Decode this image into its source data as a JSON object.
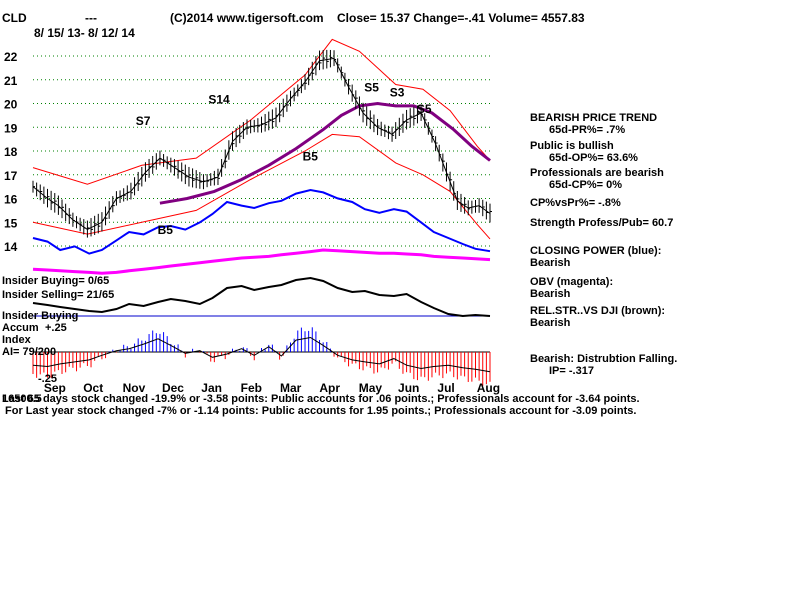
{
  "header": {
    "symbol": "CLD",
    "dashes": "---",
    "date_range": "8/ 15/ 13- 8/ 12/ 14",
    "source": "(C)2014 www.tigersoft.com",
    "quote": "Close=  15.37  Change=-.41 Volume= 4557.83"
  },
  "right_panel": [
    "BEARISH PRICE TREND",
    "65d-PR%= .7%",
    "Public is bullish",
    "65d-OP%= 63.6%",
    "Professionals are bearish",
    "65d-CP%= 0%",
    "CP%vsPr%= -.8%",
    "Strength Profess/Pub= 60.7",
    "CLOSING POWER (blue):",
    "Bearish",
    "OBV (magenta):",
    "Bearish",
    "REL.STR..VS DJI (brown):",
    "Bearish",
    "Bearish: Distrubtion Falling.",
    "IP= -.317"
  ],
  "left_labels": {
    "insider_buying": "Insider Buying= 0/65",
    "insider_selling": "Insider Selling= 21/65",
    "insider_buying_2": "Insider Buying",
    "accum": "Accum",
    "accum_top": "+.25",
    "index": "Index",
    "ai": "AI= 79/200",
    "accum_bottom": "-.25"
  },
  "footer": {
    "line1_overlap": "16500.5",
    "line1": "Last 65 days stock changed -19.9% or -3.58 points:  Public accounts for  .06 points.;  Professionals account for -3.64 points.",
    "line2": "For Last year stock changed -7% or -1.14 points:  Public accounts for  1.95 points.;  Professionals account for -3.09 points."
  },
  "colors": {
    "price_bars": "#000000",
    "bands": "#ff0000",
    "ma": "#800080",
    "closing_power": "#0000ff",
    "obv": "#ff00ff",
    "rel_strength": "#000000",
    "accum_positive": "#0000ff",
    "accum_negative": "#ff0000",
    "grid": "#008000"
  },
  "chart_data": {
    "type": "line",
    "title": "CLD  8/ 15/ 13- 8/ 12/ 14",
    "x_labels": [
      "Sep",
      "Oct",
      "Nov",
      "Dec",
      "Jan",
      "Feb",
      "Mar",
      "Apr",
      "May",
      "Jun",
      "Jul",
      "Aug"
    ],
    "y_ticks": [
      14,
      15,
      16,
      17,
      18,
      19,
      20,
      21,
      22
    ],
    "ylim": [
      13.5,
      22.8
    ],
    "grid": true,
    "series": [
      {
        "name": "CLD",
        "x": [
          0,
          8,
          14,
          22,
          30,
          38,
          46,
          54,
          62,
          70,
          78,
          86,
          94,
          102,
          110,
          118,
          126,
          134,
          142,
          150,
          158,
          166,
          174,
          182,
          190,
          198,
          206,
          214,
          222,
          228,
          234,
          240,
          246,
          252
        ],
        "values": [
          16.5,
          16.0,
          15.7,
          15.1,
          14.7,
          15.0,
          16.0,
          16.3,
          17.1,
          17.7,
          17.3,
          16.9,
          16.7,
          16.9,
          18.4,
          19.0,
          19.1,
          19.4,
          20.2,
          20.9,
          21.8,
          21.9,
          20.7,
          19.6,
          19.0,
          18.7,
          19.3,
          19.6,
          18.3,
          17.1,
          15.9,
          15.6,
          15.7,
          15.37
        ]
      },
      {
        "name": "",
        "x": [
          0,
          30,
          60,
          90,
          120,
          150,
          165,
          180,
          200,
          215,
          230,
          245,
          252
        ],
        "values": [
          17.3,
          16.6,
          17.4,
          17.7,
          19.3,
          21.2,
          22.7,
          22.2,
          20.8,
          20.6,
          19.7,
          18.2,
          17.6
        ]
      },
      {
        "name": "",
        "x": [
          0,
          30,
          60,
          90,
          120,
          150,
          165,
          180,
          200,
          215,
          230,
          245,
          252
        ],
        "values": [
          15.0,
          14.5,
          15.0,
          15.5,
          16.8,
          18.0,
          18.7,
          18.6,
          17.5,
          17.0,
          16.3,
          14.9,
          14.3
        ]
      },
      {
        "name": "",
        "x": [
          70,
          85,
          100,
          115,
          130,
          145,
          160,
          170,
          180,
          190,
          200,
          210,
          220,
          232,
          242,
          252
        ],
        "values": [
          15.8,
          16.0,
          16.3,
          16.8,
          17.4,
          18.1,
          18.9,
          19.5,
          19.9,
          20.0,
          19.9,
          19.9,
          19.6,
          18.9,
          18.2,
          17.6
        ]
      }
    ],
    "signals": [
      {
        "label": "S7",
        "x": 60,
        "y": 19.1
      },
      {
        "label": "S14",
        "x": 100,
        "y": 20.0
      },
      {
        "label": "B5",
        "x": 72,
        "y": 14.5
      },
      {
        "label": "B5",
        "x": 152,
        "y": 17.6
      },
      {
        "label": "S5",
        "x": 186,
        "y": 20.5
      },
      {
        "label": "S3",
        "x": 200,
        "y": 20.3
      },
      {
        "label": "S5",
        "x": 215,
        "y": 19.6
      }
    ],
    "closing_power": [
      2.5,
      2.2,
      1.5,
      1.8,
      1.2,
      1.5,
      2.3,
      3.0,
      2.8,
      3.4,
      3.5,
      3.2,
      3.8,
      4.5,
      5.5,
      5.2,
      5.0,
      5.4,
      5.6,
      6.2,
      6.5,
      6.3,
      5.8,
      5.5,
      4.9,
      4.6,
      4.9,
      4.7,
      3.8,
      3.0,
      2.5,
      2.0,
      1.6,
      1.4
    ],
    "obv": [
      1.6,
      1.5,
      1.4,
      1.3,
      1.2,
      1.1,
      1.2,
      1.4,
      1.6,
      1.8,
      2.0,
      2.2,
      2.4,
      2.6,
      2.8,
      3.0,
      3.1,
      3.2,
      3.4,
      3.6,
      3.8,
      4.0,
      3.9,
      3.8,
      3.7,
      3.6,
      3.6,
      3.5,
      3.4,
      3.2,
      3.1,
      3.0,
      2.9,
      2.8
    ],
    "rel_strength": [
      1.5,
      1.3,
      1.1,
      0.9,
      0.7,
      0.6,
      0.9,
      1.4,
      1.2,
      1.6,
      1.9,
      1.7,
      1.4,
      2.0,
      3.0,
      3.2,
      2.8,
      3.1,
      3.3,
      3.8,
      4.0,
      3.7,
      3.0,
      2.6,
      2.7,
      2.3,
      2.2,
      2.4,
      1.6,
      1.0,
      0.4,
      0.2,
      0.3,
      0.2
    ],
    "accum_index": [
      -0.2,
      -0.22,
      -0.18,
      -0.15,
      -0.12,
      -0.05,
      0.02,
      0.05,
      0.12,
      0.2,
      0.1,
      -0.02,
      0.02,
      -0.08,
      -0.03,
      0.05,
      -0.05,
      0.08,
      -0.06,
      0.18,
      0.22,
      0.1,
      -0.05,
      -0.12,
      -0.15,
      -0.18,
      -0.1,
      -0.2,
      -0.25,
      -0.22,
      -0.2,
      -0.24,
      -0.26,
      -0.3
    ]
  }
}
